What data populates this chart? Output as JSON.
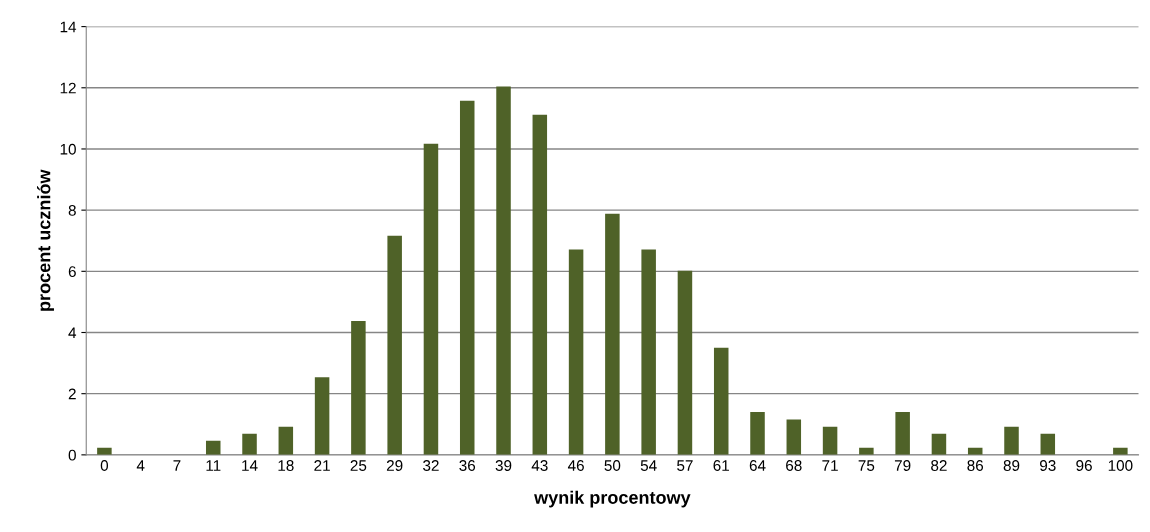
{
  "chart_data": {
    "type": "bar",
    "xlabel": "wynik procentowy",
    "ylabel": "procent uczniów",
    "categories": [
      "0",
      "4",
      "7",
      "11",
      "14",
      "18",
      "21",
      "25",
      "29",
      "32",
      "36",
      "39",
      "43",
      "46",
      "50",
      "54",
      "57",
      "61",
      "64",
      "68",
      "71",
      "75",
      "79",
      "82",
      "86",
      "89",
      "93",
      "96",
      "100"
    ],
    "values": [
      0.23,
      0,
      0,
      0.46,
      0.69,
      0.92,
      2.54,
      4.38,
      7.16,
      10.17,
      11.58,
      12.04,
      11.12,
      6.71,
      7.88,
      6.71,
      6.02,
      3.5,
      1.4,
      1.16,
      0.92,
      0.23,
      1.4,
      0.69,
      0.23,
      0.92,
      0.69,
      0,
      0.23
    ],
    "color": "#4f6228",
    "ylim": [
      0,
      14
    ],
    "yticks": [
      0,
      2,
      4,
      6,
      8,
      10,
      12,
      14
    ],
    "grid": "y",
    "legend": false
  }
}
